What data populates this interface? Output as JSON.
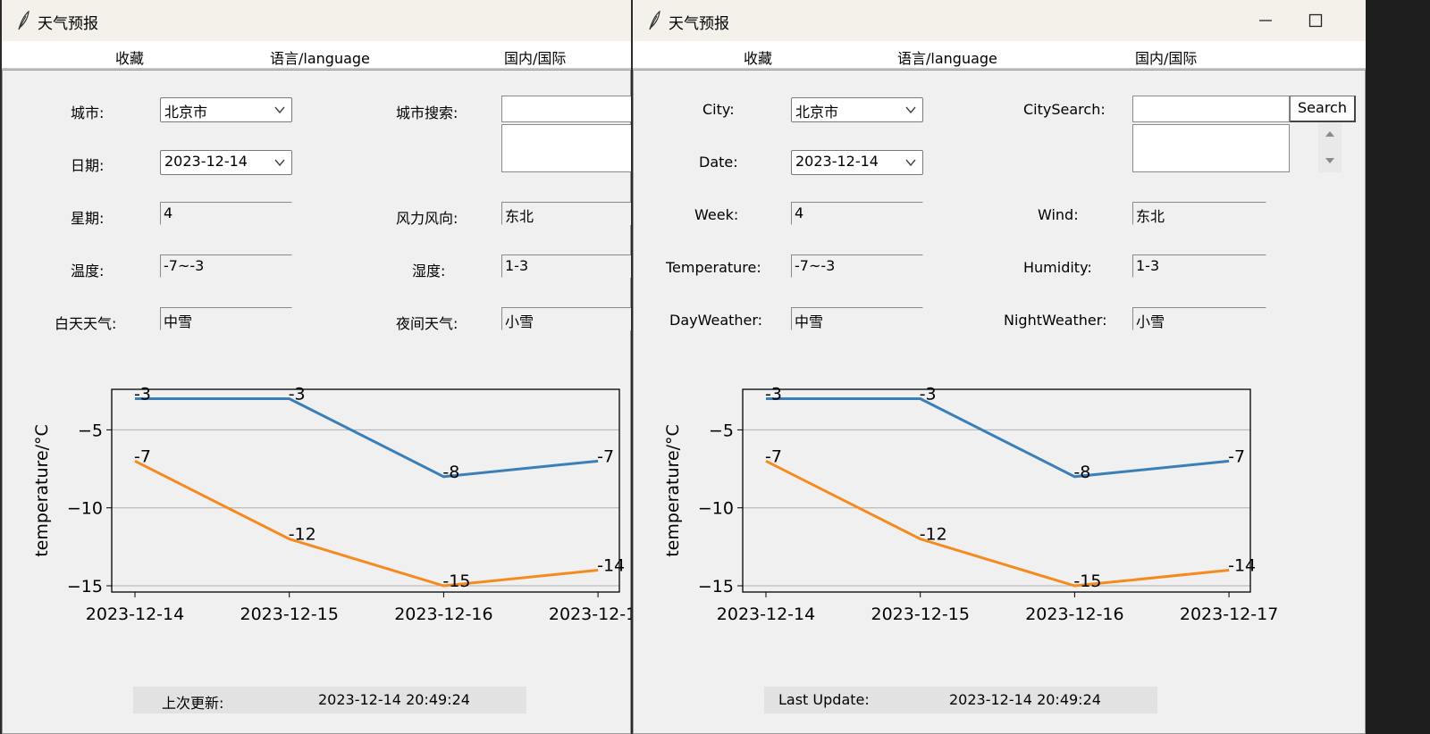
{
  "windows": [
    {
      "id": "left",
      "title": "天气预报",
      "menu": [
        "收藏",
        "语言/language",
        "国内/国际"
      ],
      "labels": {
        "city": "城市:",
        "date": "日期:",
        "week": "星期:",
        "temperature": "温度:",
        "day_weather": "白天天气:",
        "city_search": "城市搜索:",
        "wind": "风力风向:",
        "humidity": "湿度:",
        "night_weather": "夜间天气:"
      },
      "values": {
        "city": "北京市",
        "date": "2023-12-14",
        "week": "4",
        "temperature": "-7~-3",
        "day_weather": "中雪",
        "wind": "东北",
        "humidity": "1-3",
        "night_weather": "小雪",
        "city_search": ""
      },
      "status": {
        "label": "上次更新:",
        "value": "2023-12-14 20:49:24"
      }
    },
    {
      "id": "right",
      "title": "天气预报",
      "menu": [
        "收藏",
        "语言/language",
        "国内/国际"
      ],
      "labels": {
        "city": "City:",
        "date": "Date:",
        "week": "Week:",
        "temperature": "Temperature:",
        "day_weather": "DayWeather:",
        "city_search": "CitySearch:",
        "wind": "Wind:",
        "humidity": "Humidity:",
        "night_weather": "NightWeather:"
      },
      "values": {
        "city": "北京市",
        "date": "2023-12-14",
        "week": "4",
        "temperature": "-7~-3",
        "day_weather": "中雪",
        "wind": "东北",
        "humidity": "1-3",
        "night_weather": "小雪",
        "city_search": ""
      },
      "search_button": "Search",
      "status": {
        "label": "Last Update:",
        "value": "2023-12-14 20:49:24"
      }
    }
  ],
  "chart_data": {
    "type": "line",
    "title": "",
    "xlabel": "",
    "ylabel": "temperature/°C",
    "categories": [
      "2023-12-14",
      "2023-12-15",
      "2023-12-16",
      "2023-12-17"
    ],
    "series": [
      {
        "values": [
          -3,
          -3,
          -8,
          -7
        ],
        "color": "#3a7fb8"
      },
      {
        "values": [
          -7,
          -12,
          -15,
          -14
        ],
        "color": "#f58a1f"
      }
    ],
    "yticks": [
      -5,
      -10,
      -15
    ],
    "ylim": [
      -15.4,
      -2.4
    ],
    "grid": "horizontal"
  },
  "icons": [
    "feather-icon",
    "minimize-icon",
    "maximize-icon",
    "close-icon",
    "chevron-down-icon",
    "scroll-up-icon",
    "scroll-down-icon"
  ]
}
